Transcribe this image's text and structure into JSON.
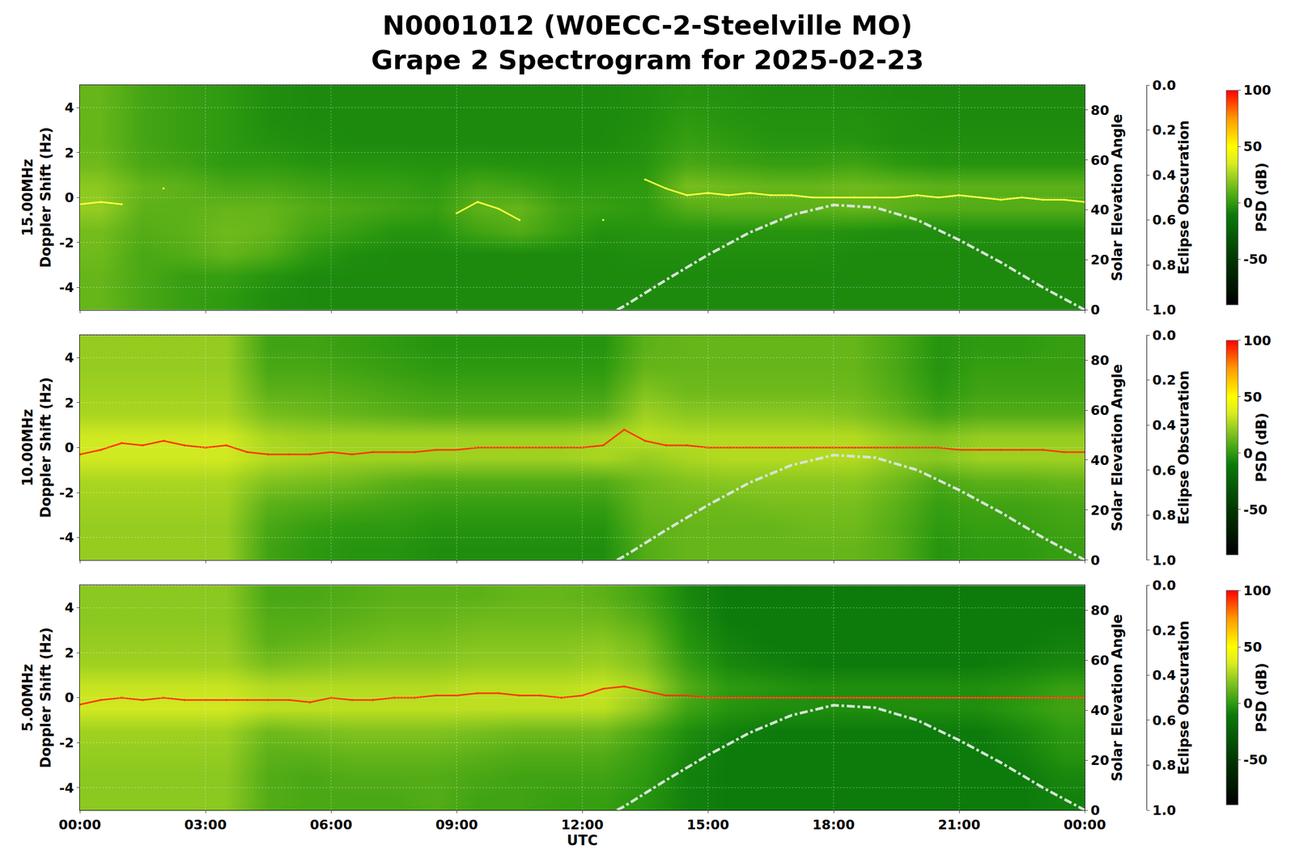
{
  "chart_data": {
    "type": "heatmap",
    "title": [
      "N0001012 (W0ECC-2-Steelville MO)",
      "Grape 2 Spectrogram for 2025-02-23"
    ],
    "xlabel": "UTC",
    "xlim": [
      0,
      24
    ],
    "xticks": [
      {
        "value": 0,
        "label": "00:00"
      },
      {
        "value": 3,
        "label": "03:00"
      },
      {
        "value": 6,
        "label": "06:00"
      },
      {
        "value": 9,
        "label": "09:00"
      },
      {
        "value": 12,
        "label": "12:00"
      },
      {
        "value": 15,
        "label": "15:00"
      },
      {
        "value": 18,
        "label": "18:00"
      },
      {
        "value": 21,
        "label": "21:00"
      },
      {
        "value": 24,
        "label": "00:00"
      }
    ],
    "ylabel": "Doppler Shift (Hz)",
    "ylim": [
      -5,
      5
    ],
    "yticks": [
      -4,
      -2,
      0,
      2,
      4
    ],
    "y2label": "Solar Elevation Angle",
    "y2lim": [
      0,
      90
    ],
    "y2ticks": [
      0,
      20,
      40,
      60,
      80
    ],
    "y3label": "Eclipse Obscuration",
    "y3lim": [
      1.0,
      0.0
    ],
    "y3ticks": [
      {
        "value": 0,
        "label": "0.0"
      },
      0.2,
      0.4,
      0.6,
      0.8,
      {
        "value": 1,
        "label": "1.0"
      }
    ],
    "grid": true,
    "colorbar": {
      "title": "PSD (dB)",
      "range": [
        -90,
        100
      ],
      "ticks": [
        -50,
        0,
        50,
        100
      ]
    },
    "cell_x": [
      0.5,
      1.5,
      2.5,
      3.5,
      4.5,
      5.5,
      6.5,
      7.5,
      8.5,
      9.5,
      10.5,
      11.5,
      12.5,
      13.5,
      14.5,
      15.5,
      16.5,
      17.5,
      18.5,
      19.5,
      20.5,
      21.5,
      22.5,
      23.5
    ],
    "cell_y": [
      -4.5,
      -3.5,
      -2.5,
      -1.5,
      -0.5,
      0.5,
      1.5,
      2.5,
      3.5,
      4.5
    ],
    "trace_x": [
      0,
      0.5,
      1,
      1.5,
      2,
      2.5,
      3,
      3.5,
      4,
      4.5,
      5,
      5.5,
      6,
      6.5,
      7,
      7.5,
      8,
      8.5,
      9,
      9.5,
      10,
      10.5,
      11,
      11.5,
      12,
      12.5,
      13,
      13.5,
      14,
      14.5,
      15,
      15.5,
      16,
      16.5,
      17,
      17.5,
      18,
      18.5,
      19,
      19.5,
      20,
      20.5,
      21,
      21.5,
      22,
      22.5,
      23,
      23.5,
      24
    ],
    "solar_elevation": {
      "x": [
        12.83,
        13,
        14,
        15,
        16,
        17,
        18,
        19,
        20,
        21,
        22,
        23,
        24
      ],
      "values": [
        0,
        1.5,
        12,
        22,
        31,
        38,
        42,
        41,
        36,
        28,
        19,
        9,
        0
      ],
      "color": "#d6e4d6",
      "line_style": "dashdot"
    },
    "eclipse_obscuration": {
      "x": [
        0,
        24
      ],
      "values": [
        0,
        0
      ],
      "color": "#9a9a9a",
      "line_style": "dotted"
    },
    "panels": [
      {
        "label": "15.00MHz",
        "trace": {
          "color": "#ffff40",
          "values": [
            -0.3,
            -0.2,
            -0.3,
            null,
            0.4,
            null,
            null,
            null,
            null,
            null,
            null,
            null,
            null,
            null,
            null,
            null,
            null,
            null,
            -0.7,
            -0.2,
            -0.5,
            -1.0,
            null,
            null,
            null,
            -1.0,
            null,
            0.8,
            0.4,
            0.1,
            0.2,
            0.1,
            0.2,
            0.1,
            0.1,
            0.0,
            0.0,
            0.0,
            0.0,
            0.0,
            0.1,
            0.0,
            0.1,
            0.0,
            -0.1,
            0.0,
            -0.1,
            -0.1,
            -0.2
          ]
        },
        "cells": [
          [
            12,
            6,
            2,
            0,
            -4,
            -5,
            -5,
            -5,
            -5,
            -5,
            -5,
            -5,
            -5,
            -5,
            -5,
            -5,
            -5,
            -5,
            -5,
            -5,
            -5,
            -5,
            -5,
            -5
          ],
          [
            12,
            6,
            2,
            2,
            -2,
            -5,
            -5,
            -5,
            -5,
            -5,
            -5,
            -5,
            -5,
            -5,
            -5,
            -5,
            -5,
            -5,
            -5,
            -5,
            -5,
            -5,
            -5,
            -5
          ],
          [
            14,
            6,
            8,
            12,
            8,
            0,
            -4,
            -5,
            -5,
            -5,
            -5,
            -5,
            -5,
            -4,
            -4,
            -4,
            -4,
            -4,
            -5,
            -5,
            -5,
            -5,
            -5,
            -5
          ],
          [
            15,
            8,
            10,
            14,
            12,
            5,
            2,
            -2,
            -2,
            4,
            8,
            2,
            -3,
            -2,
            -2,
            -2,
            -2,
            -2,
            -3,
            -4,
            -4,
            -4,
            -4,
            -4
          ],
          [
            22,
            10,
            10,
            12,
            12,
            8,
            6,
            4,
            2,
            10,
            12,
            4,
            2,
            0,
            8,
            10,
            10,
            10,
            12,
            10,
            8,
            8,
            8,
            8
          ],
          [
            20,
            12,
            10,
            6,
            6,
            4,
            2,
            2,
            0,
            6,
            4,
            0,
            0,
            0,
            16,
            14,
            12,
            12,
            14,
            12,
            10,
            10,
            10,
            10
          ],
          [
            14,
            6,
            4,
            0,
            0,
            -2,
            -2,
            -2,
            -3,
            -2,
            -3,
            -3,
            -3,
            -2,
            6,
            4,
            2,
            2,
            4,
            0,
            -2,
            -2,
            -2,
            -2
          ],
          [
            12,
            5,
            2,
            0,
            -3,
            -4,
            -5,
            -5,
            -5,
            -5,
            -5,
            -5,
            -5,
            -3,
            2,
            0,
            -2,
            -2,
            -2,
            -4,
            -4,
            -4,
            -4,
            -4
          ],
          [
            12,
            5,
            2,
            0,
            -4,
            -5,
            -5,
            -5,
            -5,
            -5,
            -5,
            -5,
            -5,
            -4,
            0,
            -2,
            -3,
            -3,
            -3,
            -4,
            -5,
            -5,
            -5,
            -5
          ],
          [
            12,
            5,
            2,
            0,
            -4,
            -5,
            -5,
            -5,
            -5,
            -5,
            -5,
            -5,
            -5,
            -4,
            -2,
            -3,
            -4,
            -4,
            -4,
            -5,
            -5,
            -5,
            -5,
            -5
          ]
        ]
      },
      {
        "label": "10.00MHz",
        "trace": {
          "color": "#ff3a00",
          "values": [
            -0.3,
            -0.1,
            0.2,
            0.1,
            0.3,
            0.1,
            0.0,
            0.1,
            -0.2,
            -0.3,
            -0.3,
            -0.3,
            -0.2,
            -0.3,
            -0.2,
            -0.2,
            -0.2,
            -0.1,
            -0.1,
            0.0,
            0.0,
            0.0,
            0.0,
            0.0,
            0.0,
            0.1,
            0.8,
            0.3,
            0.1,
            0.1,
            0.0,
            0.0,
            0.0,
            0.0,
            0.0,
            0.0,
            0.0,
            0.0,
            0.0,
            0.0,
            0.0,
            0.0,
            -0.1,
            -0.1,
            -0.1,
            -0.1,
            -0.1,
            -0.2,
            -0.2
          ]
        },
        "cells": [
          [
            22,
            22,
            22,
            22,
            4,
            0,
            -2,
            -2,
            -4,
            -4,
            -4,
            -4,
            -4,
            8,
            12,
            12,
            12,
            12,
            12,
            8,
            -2,
            0,
            0,
            2
          ],
          [
            22,
            22,
            22,
            22,
            6,
            2,
            0,
            0,
            -2,
            -2,
            -2,
            -2,
            -2,
            10,
            12,
            12,
            12,
            14,
            14,
            8,
            0,
            2,
            2,
            4
          ],
          [
            24,
            24,
            24,
            24,
            10,
            8,
            6,
            4,
            2,
            2,
            2,
            2,
            2,
            12,
            14,
            14,
            16,
            16,
            16,
            10,
            2,
            4,
            4,
            6
          ],
          [
            26,
            26,
            26,
            26,
            18,
            16,
            14,
            10,
            8,
            8,
            8,
            8,
            8,
            14,
            18,
            20,
            20,
            20,
            20,
            14,
            6,
            10,
            10,
            12
          ],
          [
            34,
            34,
            34,
            34,
            28,
            26,
            24,
            24,
            24,
            24,
            24,
            24,
            26,
            22,
            26,
            28,
            28,
            28,
            28,
            22,
            20,
            24,
            24,
            24
          ],
          [
            34,
            34,
            34,
            34,
            26,
            24,
            24,
            24,
            24,
            24,
            24,
            24,
            26,
            30,
            28,
            28,
            28,
            28,
            28,
            22,
            18,
            22,
            22,
            22
          ],
          [
            26,
            26,
            26,
            26,
            16,
            14,
            12,
            10,
            8,
            8,
            8,
            8,
            10,
            24,
            20,
            20,
            20,
            20,
            18,
            12,
            4,
            8,
            8,
            8
          ],
          [
            24,
            24,
            24,
            24,
            10,
            10,
            8,
            6,
            4,
            4,
            4,
            4,
            4,
            18,
            14,
            14,
            14,
            14,
            14,
            8,
            0,
            4,
            4,
            4
          ],
          [
            22,
            22,
            22,
            22,
            6,
            6,
            4,
            2,
            0,
            0,
            0,
            0,
            0,
            12,
            12,
            12,
            12,
            12,
            12,
            6,
            -2,
            2,
            2,
            2
          ],
          [
            22,
            22,
            22,
            22,
            4,
            4,
            2,
            0,
            -2,
            -2,
            -2,
            -2,
            -2,
            10,
            12,
            12,
            12,
            12,
            12,
            6,
            -2,
            0,
            0,
            2
          ]
        ]
      },
      {
        "label": "5.00MHz",
        "trace": {
          "color": "#ff3a00",
          "values": [
            -0.3,
            -0.1,
            0.0,
            -0.1,
            0.0,
            -0.1,
            -0.1,
            -0.1,
            -0.1,
            -0.1,
            -0.1,
            -0.2,
            0.0,
            -0.1,
            -0.1,
            0.0,
            0.0,
            0.1,
            0.1,
            0.2,
            0.2,
            0.1,
            0.1,
            0.0,
            0.1,
            0.4,
            0.5,
            0.3,
            0.1,
            0.1,
            0.0,
            0.0,
            0.0,
            0.0,
            0.0,
            0.0,
            0.0,
            0.0,
            0.0,
            0.0,
            0.0,
            0.0,
            0.0,
            0.0,
            0.0,
            0.0,
            0.0,
            0.0,
            0.0
          ]
        },
        "cells": [
          [
            20,
            20,
            20,
            20,
            8,
            6,
            6,
            6,
            8,
            4,
            4,
            2,
            2,
            -2,
            -8,
            -10,
            -10,
            -10,
            -10,
            -10,
            -10,
            -10,
            -10,
            -8
          ],
          [
            20,
            20,
            20,
            20,
            8,
            6,
            8,
            8,
            8,
            6,
            4,
            4,
            4,
            0,
            -8,
            -10,
            -10,
            -10,
            -10,
            -10,
            -10,
            -10,
            -10,
            -6
          ],
          [
            22,
            22,
            22,
            22,
            10,
            10,
            12,
            12,
            12,
            10,
            8,
            8,
            8,
            2,
            -6,
            -10,
            -10,
            -10,
            -10,
            -10,
            -10,
            -10,
            -8,
            -2
          ],
          [
            24,
            24,
            24,
            24,
            14,
            16,
            18,
            18,
            18,
            16,
            14,
            14,
            14,
            6,
            -4,
            -8,
            -10,
            -10,
            -10,
            -10,
            -10,
            -10,
            -6,
            0
          ],
          [
            34,
            34,
            34,
            34,
            30,
            30,
            30,
            30,
            30,
            30,
            30,
            30,
            30,
            20,
            4,
            -2,
            -4,
            -4,
            -4,
            -4,
            -4,
            -4,
            0,
            4
          ],
          [
            32,
            32,
            32,
            32,
            28,
            28,
            28,
            28,
            28,
            30,
            30,
            30,
            32,
            26,
            8,
            0,
            -2,
            -4,
            -4,
            -4,
            -4,
            -4,
            -2,
            2
          ],
          [
            24,
            24,
            24,
            24,
            16,
            18,
            20,
            20,
            20,
            22,
            22,
            22,
            24,
            18,
            2,
            -6,
            -8,
            -10,
            -10,
            -10,
            -10,
            -10,
            -8,
            -6
          ],
          [
            22,
            22,
            22,
            22,
            10,
            12,
            14,
            16,
            16,
            18,
            18,
            18,
            20,
            14,
            -2,
            -8,
            -10,
            -10,
            -10,
            -10,
            -10,
            -10,
            -10,
            -8
          ],
          [
            20,
            20,
            20,
            20,
            8,
            8,
            10,
            12,
            12,
            14,
            14,
            14,
            14,
            8,
            -4,
            -10,
            -10,
            -10,
            -10,
            -10,
            -10,
            -10,
            -10,
            -10
          ],
          [
            20,
            20,
            20,
            20,
            6,
            6,
            8,
            10,
            10,
            10,
            12,
            12,
            10,
            4,
            -6,
            -10,
            -10,
            -10,
            -10,
            -10,
            -10,
            -10,
            -10,
            -10
          ]
        ]
      }
    ]
  }
}
